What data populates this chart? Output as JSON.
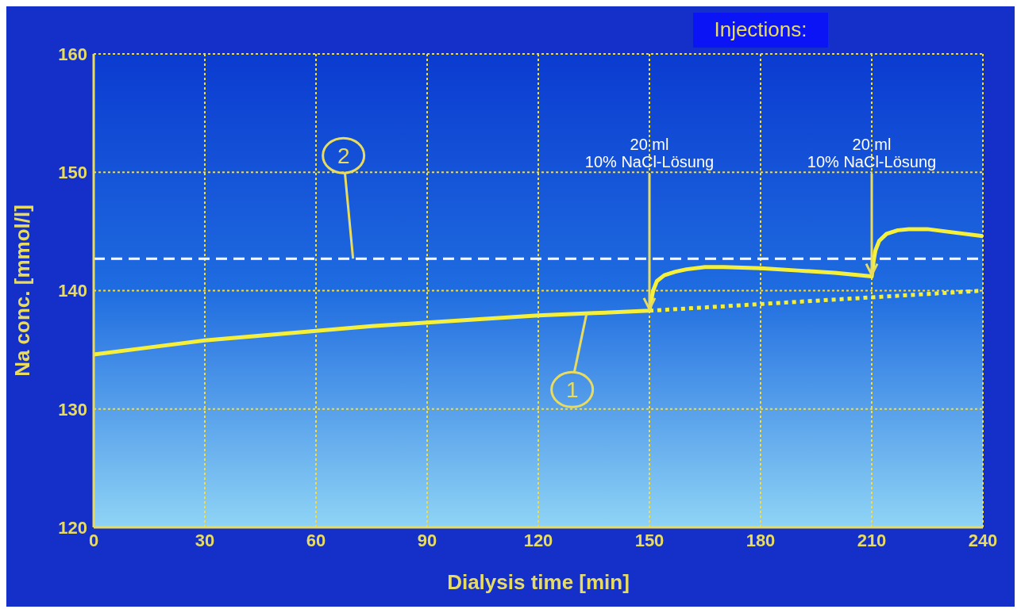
{
  "chart_data": {
    "type": "line",
    "xlabel": "Dialysis time [min]",
    "ylabel": "Na conc. [mmol/l]",
    "xlim": [
      0,
      240
    ],
    "xticks": [
      0,
      30,
      60,
      90,
      120,
      150,
      180,
      210,
      240
    ],
    "ylim": [
      120,
      160
    ],
    "yticks": [
      120,
      130,
      140,
      150,
      160
    ],
    "grid": true,
    "legend": false,
    "marker": "none",
    "series": [
      {
        "color": "#f5f03c",
        "line_style": "solid",
        "x": [
          0,
          15,
          30,
          45,
          60,
          75,
          90,
          105,
          120,
          135,
          150,
          150.5,
          151,
          152,
          154,
          157,
          160,
          165,
          170,
          180,
          190,
          200,
          210,
          210.5,
          211,
          212,
          214,
          217,
          220,
          225,
          230,
          240
        ],
        "values": [
          134.6,
          135.2,
          135.8,
          136.2,
          136.6,
          137.0,
          137.3,
          137.6,
          137.9,
          138.1,
          138.3,
          139.2,
          140.0,
          140.8,
          141.3,
          141.6,
          141.8,
          142.0,
          142.0,
          141.9,
          141.7,
          141.5,
          141.2,
          142.5,
          143.4,
          144.2,
          144.8,
          145.1,
          145.2,
          145.2,
          145.0,
          144.6
        ]
      },
      {
        "color": "#f5f03c",
        "line_style": "dotted",
        "x": [
          150,
          240
        ],
        "values": [
          138.3,
          140.0
        ]
      }
    ],
    "ref_lines": [
      {
        "axis": "y",
        "value": 142.7,
        "color": "#ffffff",
        "line_style": "dashed"
      }
    ],
    "annotations": [
      {
        "text": "20 ml\n10% NaCl-Lösung",
        "x": 150,
        "y": 138.3
      },
      {
        "text": "20 ml\n10% NaCl-Lösung",
        "x": 210,
        "y": 141.2
      },
      {
        "text": "1",
        "x": 133,
        "y": 138.0
      },
      {
        "text": "2",
        "x": 70,
        "y": 142.7
      },
      "Injections:"
    ]
  }
}
